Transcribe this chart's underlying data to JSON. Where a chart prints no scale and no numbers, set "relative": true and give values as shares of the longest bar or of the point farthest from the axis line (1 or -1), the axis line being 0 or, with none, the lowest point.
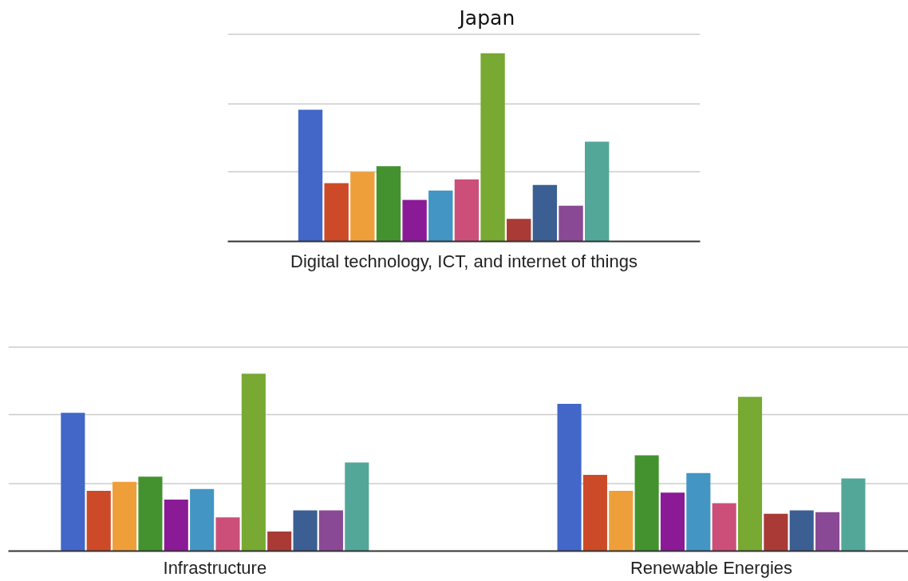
{
  "chart_data": [
    {
      "type": "bar",
      "title": "Japan",
      "xlabel": "Digital technology, ICT, and internet of things",
      "relative": true,
      "categories": [
        null,
        null,
        null,
        null,
        null,
        null,
        null,
        null,
        null,
        null,
        null,
        null
      ],
      "values": [
        0.7,
        0.31,
        0.37,
        0.4,
        0.22,
        0.27,
        0.33,
        1,
        0.12,
        0.3,
        0.19,
        0.53
      ],
      "colors": [
        "#4267c8",
        "#cc4a27",
        "#ef9f3a",
        "#44922f",
        "#8b1a96",
        "#4395c4",
        "#cc4f79",
        "#77a933",
        "#a93a35",
        "#3b5f93",
        "#8a4995",
        "#52a799"
      ],
      "ref_lines": [
        {
          "axis": "y",
          "value": 0.37,
          "color": "#cccccc"
        },
        {
          "axis": "y",
          "value": 0.73,
          "color": "#cccccc"
        },
        {
          "axis": "y",
          "value": 1.1,
          "color": "#cccccc"
        }
      ]
    },
    {
      "type": "bar",
      "relative": true,
      "categories": [
        "Infrastructure",
        "Renewable Energies"
      ],
      "series": [
        {
          "color": "#4267c8",
          "values": [
            0.78,
            0.83
          ]
        },
        {
          "color": "#cc4a27",
          "values": [
            0.34,
            0.43
          ]
        },
        {
          "color": "#ef9f3a",
          "values": [
            0.39,
            0.34
          ]
        },
        {
          "color": "#44922f",
          "values": [
            0.42,
            0.54
          ]
        },
        {
          "color": "#8b1a96",
          "values": [
            0.29,
            0.33
          ]
        },
        {
          "color": "#4395c4",
          "values": [
            0.35,
            0.44
          ]
        },
        {
          "color": "#cc4f79",
          "values": [
            0.19,
            0.27
          ]
        },
        {
          "color": "#77a933",
          "values": [
            1,
            0.87
          ]
        },
        {
          "color": "#a93a35",
          "values": [
            0.11,
            0.21
          ]
        },
        {
          "color": "#3b5f93",
          "values": [
            0.23,
            0.23
          ]
        },
        {
          "color": "#8a4995",
          "values": [
            0.23,
            0.22
          ]
        },
        {
          "color": "#52a799",
          "values": [
            0.5,
            0.41
          ]
        }
      ],
      "ref_lines": [
        {
          "axis": "y",
          "value": 0.38,
          "color": "#cccccc"
        },
        {
          "axis": "y",
          "value": 0.77,
          "color": "#cccccc"
        },
        {
          "axis": "y",
          "value": 1.15,
          "color": "#cccccc"
        }
      ]
    }
  ]
}
